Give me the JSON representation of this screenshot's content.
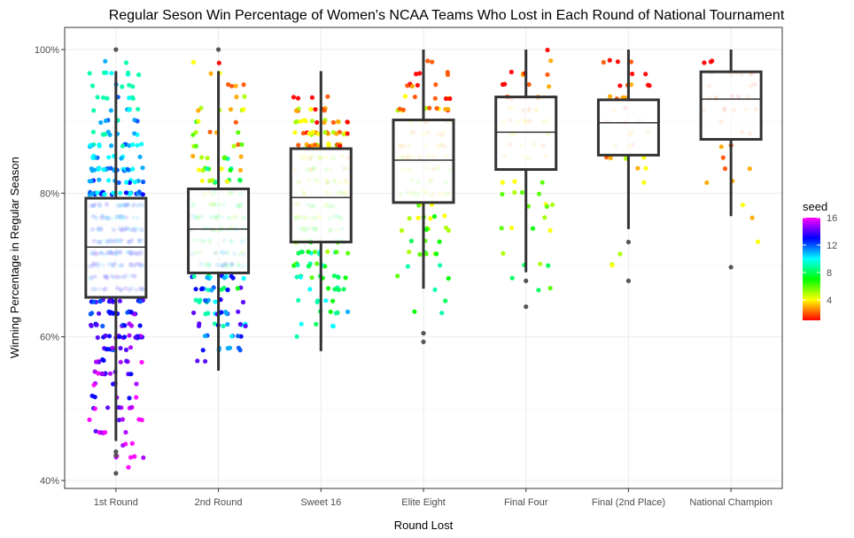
{
  "chart_data": {
    "type": "boxplot-jitter",
    "title": "Regular Seson Win Percentage of Women's NCAA Teams Who Lost in Each Round of National Tournament",
    "xlabel": "Round Lost",
    "ylabel": "Winning Percentage in Regular Season",
    "categories": [
      "1st Round",
      "2nd Round",
      "Sweet 16",
      "Elite Eight",
      "Final Four",
      "Final (2nd Place)",
      "National Champion"
    ],
    "ylim": [
      0.4,
      1.0
    ],
    "yticks": [
      0.4,
      0.6,
      0.8,
      1.0
    ],
    "ytick_labels": [
      "40%",
      "60%",
      "80%",
      "100%"
    ],
    "grid": true,
    "legend": {
      "title": "seed",
      "position": "right",
      "ticks": [
        4,
        8,
        12,
        16
      ],
      "range": [
        1,
        16
      ]
    },
    "colors": {
      "box": "#333333",
      "outlier": "#555555",
      "grid": "#ebebeb",
      "panel_border": "#333333"
    },
    "boxes": [
      {
        "category": "1st Round",
        "min": 0.455,
        "q1": 0.655,
        "median": 0.725,
        "q3": 0.793,
        "max": 0.97,
        "outliers": [
          0.41,
          0.435,
          0.44,
          1.0
        ]
      },
      {
        "category": "2nd Round",
        "min": 0.553,
        "q1": 0.689,
        "median": 0.75,
        "q3": 0.806,
        "max": 0.97,
        "outliers": [
          1.0
        ]
      },
      {
        "category": "Sweet 16",
        "min": 0.58,
        "q1": 0.732,
        "median": 0.794,
        "q3": 0.862,
        "max": 0.97,
        "outliers": []
      },
      {
        "category": "Elite Eight",
        "min": 0.667,
        "q1": 0.787,
        "median": 0.846,
        "q3": 0.902,
        "max": 1.0,
        "outliers": [
          0.593,
          0.605
        ]
      },
      {
        "category": "Final Four",
        "min": 0.69,
        "q1": 0.833,
        "median": 0.885,
        "q3": 0.934,
        "max": 1.0,
        "outliers": [
          0.642,
          0.678
        ]
      },
      {
        "category": "Final (2nd Place)",
        "min": 0.75,
        "q1": 0.853,
        "median": 0.898,
        "q3": 0.93,
        "max": 1.0,
        "outliers": [
          0.678,
          0.732
        ]
      },
      {
        "category": "National Champion",
        "min": 0.768,
        "q1": 0.875,
        "median": 0.931,
        "q3": 0.969,
        "max": 1.0,
        "outliers": [
          0.697
        ]
      }
    ],
    "series": [
      {
        "category": "1st Round",
        "n": 500,
        "low": 0.41,
        "high": 1.0,
        "q1": 0.655,
        "median": 0.725,
        "q3": 0.793,
        "seed_range": [
          9,
          16
        ]
      },
      {
        "category": "2nd Round",
        "n": 240,
        "low": 0.553,
        "high": 1.0,
        "q1": 0.689,
        "median": 0.75,
        "q3": 0.806,
        "seed_range": [
          1,
          14
        ]
      },
      {
        "category": "Sweet 16",
        "n": 230,
        "low": 0.58,
        "high": 0.97,
        "q1": 0.732,
        "median": 0.794,
        "q3": 0.862,
        "seed_range": [
          1,
          11
        ]
      },
      {
        "category": "Elite Eight",
        "n": 120,
        "low": 0.593,
        "high": 1.0,
        "q1": 0.787,
        "median": 0.846,
        "q3": 0.902,
        "seed_range": [
          1,
          9
        ]
      },
      {
        "category": "Final Four",
        "n": 75,
        "low": 0.642,
        "high": 1.0,
        "q1": 0.833,
        "median": 0.885,
        "q3": 0.934,
        "seed_range": [
          1,
          8
        ]
      },
      {
        "category": "Final (2nd Place)",
        "n": 38,
        "low": 0.678,
        "high": 1.0,
        "q1": 0.853,
        "median": 0.898,
        "q3": 0.93,
        "seed_range": [
          1,
          6
        ]
      },
      {
        "category": "National Champion",
        "n": 38,
        "low": 0.697,
        "high": 1.0,
        "q1": 0.875,
        "median": 0.931,
        "q3": 0.969,
        "seed_range": [
          1,
          4
        ]
      }
    ]
  }
}
